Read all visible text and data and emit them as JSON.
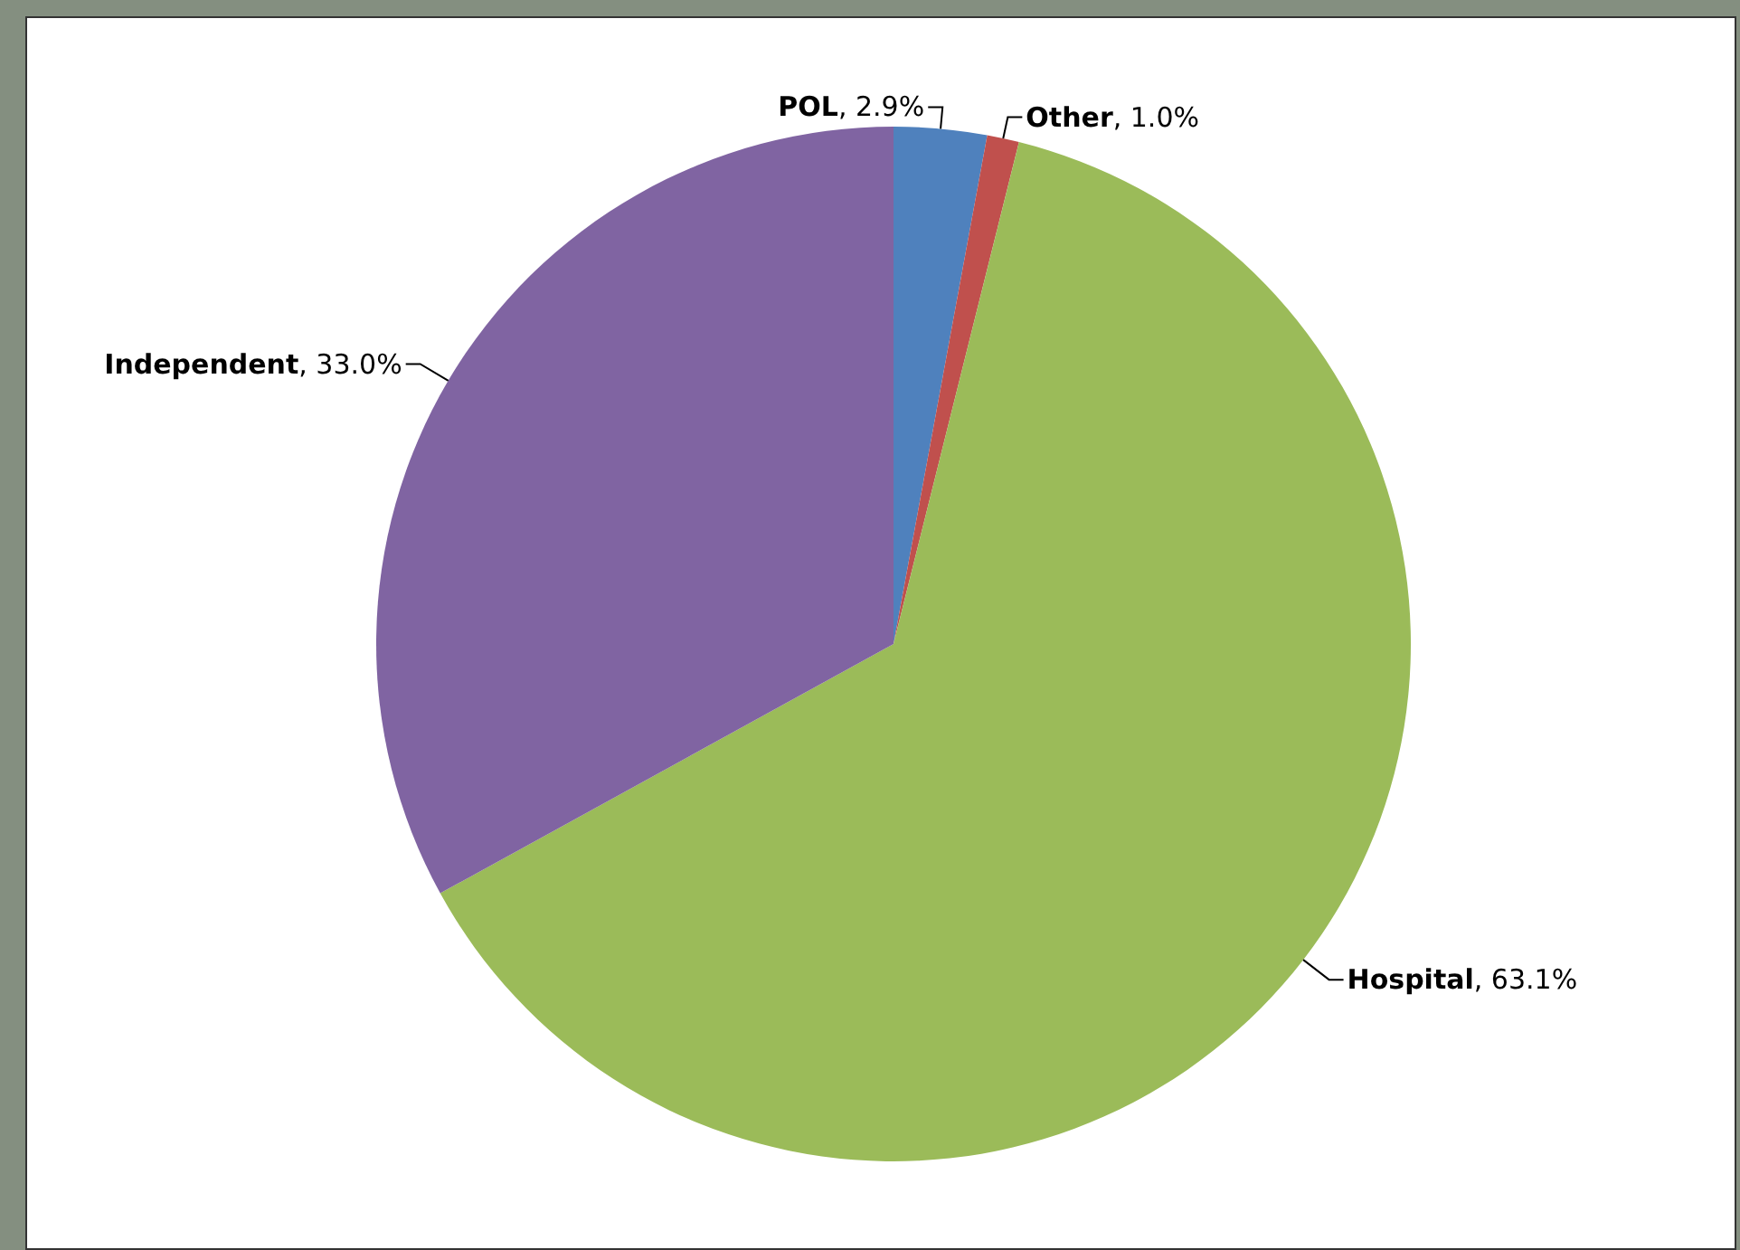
{
  "chart_data": {
    "type": "pie",
    "categories": [
      "POL",
      "Other",
      "Hospital",
      "Independent"
    ],
    "values": [
      2.9,
      1.0,
      63.1,
      33.0
    ],
    "value_labels": [
      ", 2.9%",
      ", 1.0%",
      ", 63.1%",
      ", 33.0%"
    ],
    "colors": [
      "#4f81bd",
      "#c0504d",
      "#9bbb59",
      "#8064a2"
    ],
    "legend": false
  }
}
